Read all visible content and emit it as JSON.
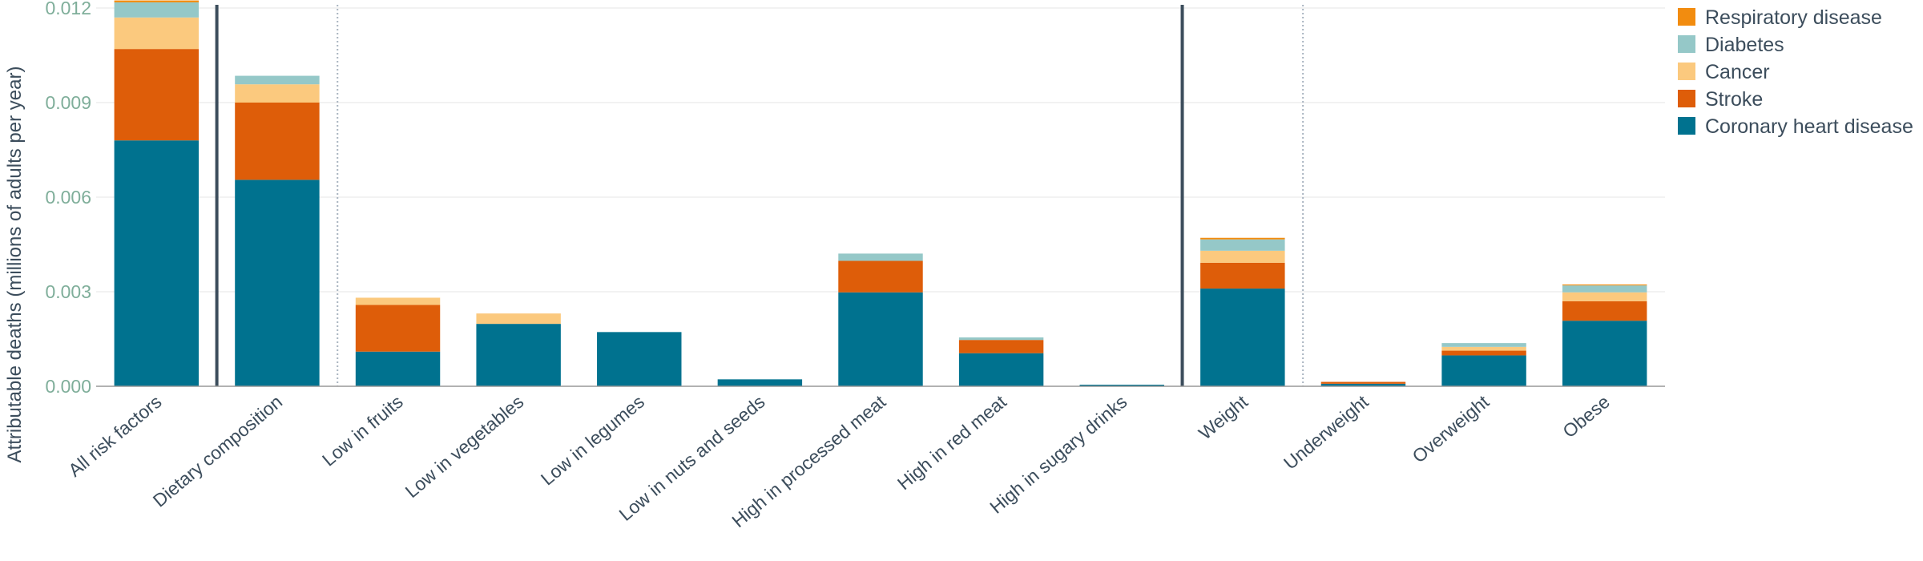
{
  "chart_data": {
    "type": "bar",
    "stacked": true,
    "ylabel": "Attributable deaths (millions of adults per year)",
    "ylim": [
      0,
      0.012
    ],
    "yticks": [
      "0.000",
      "0.003",
      "0.006",
      "0.009",
      "0.012"
    ],
    "ytick_values": [
      0,
      0.003,
      0.006,
      0.009,
      0.012
    ],
    "grid": true,
    "legend_position": "top-right",
    "categories": [
      "All risk factors",
      "Dietary composition",
      "Low in fruits",
      "Low in vegetables",
      "Low in legumes",
      "Low in nuts and seeds",
      "High in processed meat",
      "High in red meat",
      "High in sugary drinks",
      "Weight",
      "Underweight",
      "Overweight",
      "Obese"
    ],
    "series": [
      {
        "name": "Coronary heart disease",
        "color": "#00728f",
        "values": [
          0.0078,
          0.00655,
          0.0011,
          0.00198,
          0.00172,
          0.00022,
          0.00298,
          0.00105,
          5e-05,
          0.0031,
          8e-05,
          0.00098,
          0.00208
        ]
      },
      {
        "name": "Stroke",
        "color": "#de5d09",
        "values": [
          0.0029,
          0.00245,
          0.00148,
          0.0,
          0.0,
          0.0,
          0.001,
          0.00042,
          0.0,
          0.00082,
          6e-05,
          0.00015,
          0.00062
        ]
      },
      {
        "name": "Cancer",
        "color": "#fbc97e",
        "values": [
          0.001,
          0.00058,
          0.00023,
          0.00033,
          0.0,
          0.0,
          0.0,
          0.0,
          0.0,
          0.00038,
          0.0,
          0.00012,
          0.00028
        ]
      },
      {
        "name": "Diabetes",
        "color": "#95c8c8",
        "values": [
          0.00048,
          0.00027,
          0.0,
          0.0,
          0.0,
          0.0,
          0.00023,
          8e-05,
          0.0,
          0.00036,
          0.0,
          0.00012,
          0.00022
        ]
      },
      {
        "name": "Respiratory disease",
        "color": "#f28c0f",
        "values": [
          6e-05,
          0.0,
          0.0,
          0.0,
          0.0,
          0.0,
          0.0,
          0.0,
          0.0,
          5e-05,
          0.0,
          0.0,
          3e-05
        ]
      }
    ],
    "legend_order": [
      "Respiratory disease",
      "Diabetes",
      "Cancer",
      "Stroke",
      "Coronary heart disease"
    ]
  }
}
